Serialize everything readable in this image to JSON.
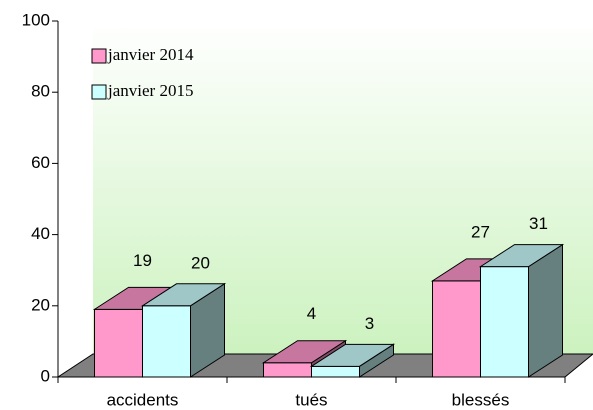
{
  "chart_data": {
    "type": "bar3d",
    "categories": [
      "accidents",
      "tués",
      "blessés"
    ],
    "series": [
      {
        "name": "janvier 2014",
        "color": "#ff99cc",
        "values": [
          19,
          4,
          27
        ]
      },
      {
        "name": "janvier 2015",
        "color": "#ccffff",
        "values": [
          20,
          3,
          31
        ]
      }
    ],
    "ylim": [
      0,
      100
    ],
    "yticks": [
      0,
      20,
      40,
      60,
      80,
      100
    ],
    "legend": "top-left",
    "grid": false
  }
}
